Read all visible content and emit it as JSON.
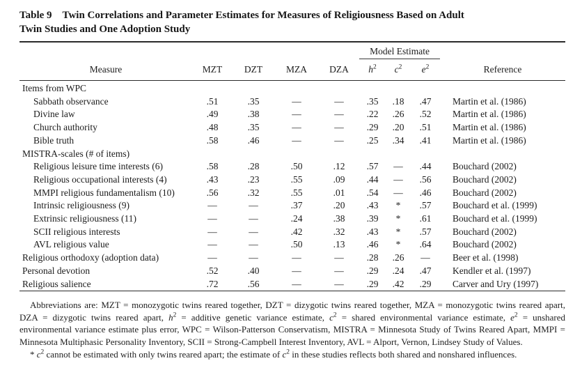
{
  "colors": {
    "background": "#ffffff",
    "text": "#1b1b1b",
    "rule": "#2a2a2a"
  },
  "title": {
    "label": "Table 9",
    "text": "Twin Correlations and Parameter Estimates for Measures of Religiousness Based on Adult Twin Studies and One Adoption Study"
  },
  "table": {
    "span_header": "Model Estimate",
    "columns": [
      "Measure",
      "MZT",
      "DZT",
      "MZA",
      "DZA",
      "h^2",
      "c^2",
      "e^2",
      "Reference"
    ],
    "missing_symbol": "—",
    "footnote_symbol": "*",
    "rows": [
      {
        "label": "Items from WPC",
        "section": true,
        "indent": false,
        "values": [
          "",
          "",
          "",
          "",
          "",
          "",
          ""
        ],
        "reference": ""
      },
      {
        "label": "Sabbath observance",
        "section": false,
        "indent": true,
        "values": [
          ".51",
          ".35",
          "—",
          "—",
          ".35",
          ".18",
          ".47"
        ],
        "reference": "Martin et al. (1986)"
      },
      {
        "label": "Divine law",
        "section": false,
        "indent": true,
        "values": [
          ".49",
          ".38",
          "—",
          "—",
          ".22",
          ".26",
          ".52"
        ],
        "reference": "Martin et al. (1986)"
      },
      {
        "label": "Church authority",
        "section": false,
        "indent": true,
        "values": [
          ".48",
          ".35",
          "—",
          "—",
          ".29",
          ".20",
          ".51"
        ],
        "reference": "Martin et al. (1986)"
      },
      {
        "label": "Bible truth",
        "section": false,
        "indent": true,
        "values": [
          ".58",
          ".46",
          "—",
          "—",
          ".25",
          ".34",
          ".41"
        ],
        "reference": "Martin et al. (1986)"
      },
      {
        "label": "MISTRA-scales (# of items)",
        "section": true,
        "indent": false,
        "values": [
          "",
          "",
          "",
          "",
          "",
          "",
          ""
        ],
        "reference": ""
      },
      {
        "label": "Religious leisure time interests (6)",
        "section": false,
        "indent": true,
        "values": [
          ".58",
          ".28",
          ".50",
          ".12",
          ".57",
          "—",
          ".44"
        ],
        "reference": "Bouchard (2002)"
      },
      {
        "label": "Religious occupational interests (4)",
        "section": false,
        "indent": true,
        "values": [
          ".43",
          ".23",
          ".55",
          ".09",
          ".44",
          "—",
          ".56"
        ],
        "reference": "Bouchard (2002)"
      },
      {
        "label": "MMPI religious fundamentalism (10)",
        "section": false,
        "indent": true,
        "values": [
          ".56",
          ".32",
          ".55",
          ".01",
          ".54",
          "—",
          ".46"
        ],
        "reference": "Bouchard (2002)"
      },
      {
        "label": "Intrinsic religiousness (9)",
        "section": false,
        "indent": true,
        "values": [
          "—",
          "—",
          ".37",
          ".20",
          ".43",
          "*",
          ".57"
        ],
        "reference": "Bouchard et al. (1999)"
      },
      {
        "label": "Extrinsic religiousness (11)",
        "section": false,
        "indent": true,
        "values": [
          "—",
          "—",
          ".24",
          ".38",
          ".39",
          "*",
          ".61"
        ],
        "reference": "Bouchard et al. (1999)"
      },
      {
        "label": "SCII religious interests",
        "section": false,
        "indent": true,
        "values": [
          "—",
          "—",
          ".42",
          ".32",
          ".43",
          "*",
          ".57"
        ],
        "reference": "Bouchard (2002)"
      },
      {
        "label": "AVL religious value",
        "section": false,
        "indent": true,
        "values": [
          "—",
          "—",
          ".50",
          ".13",
          ".46",
          "*",
          ".64"
        ],
        "reference": "Bouchard (2002)"
      },
      {
        "label": "Religious orthodoxy (adoption data)",
        "section": false,
        "indent": false,
        "values": [
          "—",
          "—",
          "—",
          "—",
          ".28",
          ".26",
          "—"
        ],
        "reference": "Beer et al. (1998)"
      },
      {
        "label": "Personal devotion",
        "section": false,
        "indent": false,
        "values": [
          ".52",
          ".40",
          "—",
          "—",
          ".29",
          ".24",
          ".47"
        ],
        "reference": "Kendler et al. (1997)"
      },
      {
        "label": "Religious salience",
        "section": false,
        "indent": false,
        "values": [
          ".72",
          ".56",
          "—",
          "—",
          ".29",
          ".42",
          ".29"
        ],
        "reference": "Carver and Ury (1997)"
      }
    ]
  },
  "footnotes": {
    "abbreviations": "Abbreviations are: MZT = monozygotic twins reared together, DZT = dizygotic twins reared together, MZA = monozygotic twins reared apart, DZA = dizygotic twins reared apart, h^2 = additive genetic variance estimate, c^2 = shared environmental variance estimate, e^2 = unshared environmental variance estimate plus error, WPC = Wilson-Patterson Conservatism, MISTRA = Minnesota Study of Twins Reared Apart, MMPI = Minnesota Multiphasic Personality Inventory, SCII = Strong-Campbell Interest Inventory, AVL = Alport, Vernon, Lindsey Study of Values.",
    "asterisk": "* c^2 cannot be estimated with only twins reared apart; the estimate of c^2 in these studies reflects both shared and nonshared influences."
  }
}
